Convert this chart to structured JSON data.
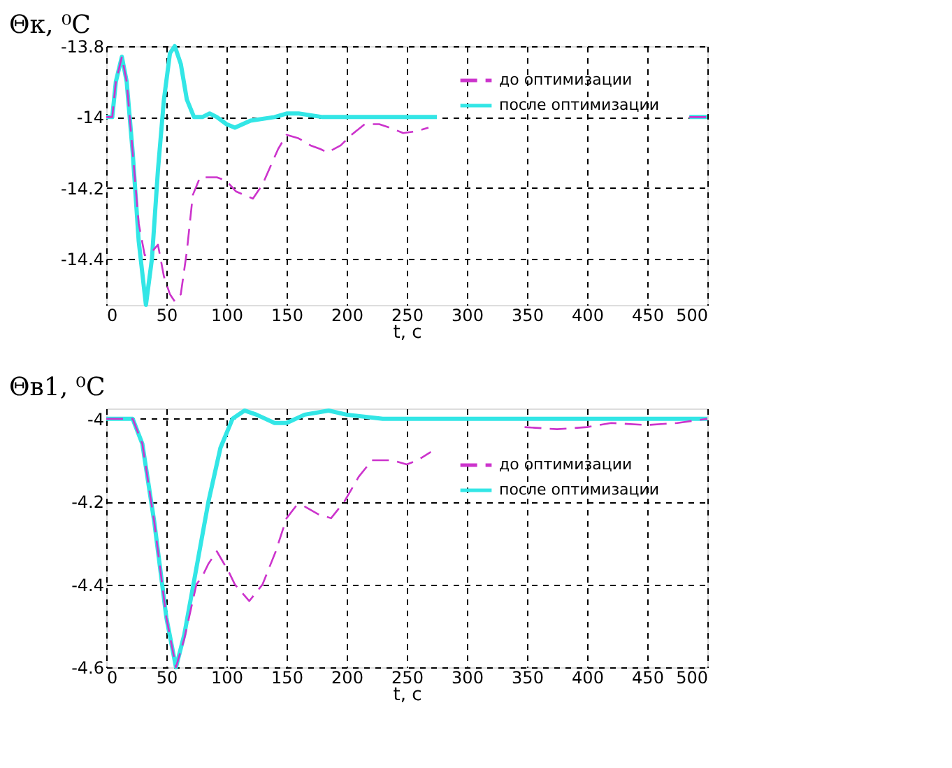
{
  "chart_data": [
    {
      "type": "line",
      "ylabel": "Θк, ⁰C",
      "xlabel": "t, c",
      "xlim": [
        0,
        500
      ],
      "xticks": [
        0,
        50,
        100,
        150,
        200,
        250,
        300,
        350,
        400,
        450,
        500
      ],
      "ylim": [
        -14.53,
        -13.8
      ],
      "yticks": [
        -14.4,
        -14.2,
        -14,
        -13.8
      ],
      "grid": true,
      "legend": "top right",
      "series": [
        {
          "name": "до оптимизации",
          "color": "#cc33cc",
          "line_style": "dashed",
          "x": [
            0,
            5,
            8,
            13,
            17,
            22,
            27,
            32,
            38,
            43,
            48,
            53,
            57,
            62,
            67,
            72,
            78,
            85,
            92,
            100,
            108,
            115,
            122,
            130,
            143,
            150,
            160,
            170,
            178,
            184,
            195,
            204,
            215,
            227,
            236,
            247,
            258,
            268,
            275,
            485,
            500
          ],
          "values": [
            -14,
            -14,
            -13.9,
            -13.83,
            -13.9,
            -14.1,
            -14.3,
            -14.39,
            -14.38,
            -14.36,
            -14.45,
            -14.5,
            -14.52,
            -14.5,
            -14.38,
            -14.22,
            -14.17,
            -14.17,
            -14.17,
            -14.18,
            -14.21,
            -14.22,
            -14.23,
            -14.19,
            -14.09,
            -14.05,
            -14.06,
            -14.08,
            -14.09,
            -14.1,
            -14.08,
            -14.05,
            -14.02,
            -14.02,
            -14.03,
            -14.045,
            -14.04,
            -14.03,
            null,
            -14,
            -14
          ]
        },
        {
          "name": "после оптимизации",
          "color": "#33e6e6",
          "line_style": "solid",
          "x": [
            0,
            5,
            8,
            13,
            17,
            22,
            27,
            33,
            38,
            43,
            48,
            53,
            57,
            62,
            67,
            73,
            80,
            86,
            92,
            100,
            107,
            120,
            140,
            150,
            160,
            180,
            275,
            280,
            485,
            500
          ],
          "values": [
            -14,
            -14,
            -13.9,
            -13.83,
            -13.9,
            -14.1,
            -14.35,
            -14.53,
            -14.4,
            -14.15,
            -13.95,
            -13.82,
            -13.8,
            -13.85,
            -13.95,
            -14,
            -14,
            -13.99,
            -14,
            -14.02,
            -14.03,
            -14.01,
            -14,
            -13.99,
            -13.99,
            -14,
            -14,
            null,
            -14,
            -14
          ]
        }
      ]
    },
    {
      "type": "line",
      "ylabel": "Θв1, ⁰C",
      "xlabel": "t, c",
      "xlim": [
        0,
        500
      ],
      "xticks": [
        0,
        50,
        100,
        150,
        200,
        250,
        300,
        350,
        400,
        450,
        500
      ],
      "ylim": [
        -4.6,
        -3.975
      ],
      "yticks": [
        -4.6,
        -4.4,
        -4.2,
        -4
      ],
      "grid": true,
      "legend": "top right",
      "series": [
        {
          "name": "до оптимизации",
          "color": "#cc33cc",
          "line_style": "dashed",
          "x": [
            0,
            22,
            30,
            40,
            50,
            58,
            65,
            75,
            80,
            85,
            92,
            102,
            107,
            119,
            130,
            141,
            150,
            158,
            164,
            176,
            187,
            198,
            210,
            221,
            238,
            250,
            259,
            270,
            280,
            348,
            375,
            400,
            420,
            450,
            475,
            500
          ],
          "values": [
            -4,
            -4,
            -4.06,
            -4.25,
            -4.48,
            -4.6,
            -4.53,
            -4.4,
            -4.38,
            -4.35,
            -4.32,
            -4.37,
            -4.4,
            -4.44,
            -4.4,
            -4.32,
            -4.24,
            -4.21,
            -4.21,
            -4.23,
            -4.24,
            -4.2,
            -4.14,
            -4.1,
            -4.1,
            -4.11,
            -4.1,
            -4.08,
            null,
            -4.02,
            -4.025,
            -4.02,
            -4.01,
            -4.015,
            -4.01,
            -4
          ]
        },
        {
          "name": "после оптимизации",
          "color": "#33e6e6",
          "line_style": "solid",
          "x": [
            0,
            22,
            30,
            40,
            50,
            58,
            65,
            75,
            85,
            95,
            105,
            115,
            125,
            140,
            150,
            165,
            185,
            200,
            230,
            500
          ],
          "values": [
            -4,
            -4,
            -4.06,
            -4.25,
            -4.48,
            -4.6,
            -4.52,
            -4.36,
            -4.2,
            -4.07,
            -4,
            -3.98,
            -3.99,
            -4.01,
            -4.01,
            -3.99,
            -3.98,
            -3.99,
            -4,
            -4
          ]
        }
      ]
    }
  ]
}
